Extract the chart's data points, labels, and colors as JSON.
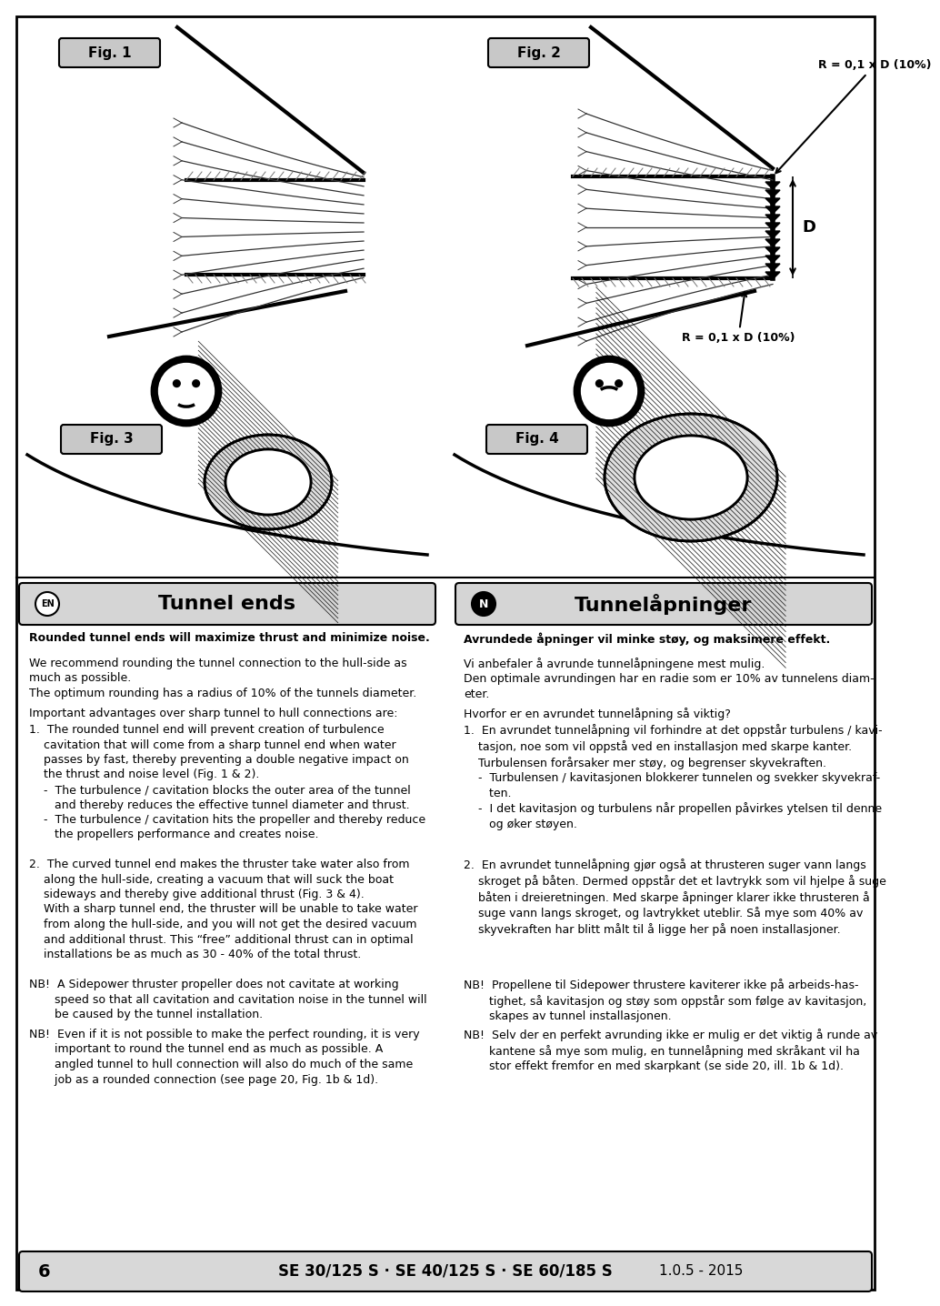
{
  "title_en": "Tunnel ends",
  "title_no": "Tunnelåpninger",
  "footer_text_bold": "SE 30/125 S · SE 40/125 S · SE 60/185 S",
  "footer_version": "1.0.5 - 2015",
  "footer_page": "6",
  "bold_en_1": "Rounded tunnel ends will maximize thrust and minimize noise.",
  "bold_no_1": "Avrundede åpninger vil minke støy, og maksimere effekt.",
  "text_en_rec": "We recommend rounding the tunnel connection to the hull-side as\nmuch as possible.\nThe optimum rounding has a radius of 10% of the tunnels diameter.",
  "text_no_rec": "Vi anbefaler å avrunde tunnelåpningene mest mulig.\nDen optimale avrundingen har en radie som er 10% av tunnelens diam-\neter.",
  "text_en_imp": "Important advantages over sharp tunnel to hull connections are:",
  "text_no_imp": "Hvorfor er en avrundet tunnelåpning så viktig?",
  "text_en_p1": "1.  The rounded tunnel end will prevent creation of turbulence\n    cavitation that will come from a sharp tunnel end when water\n    passes by fast, thereby preventing a double negative impact on\n    the thrust and noise level (Fig. 1 & 2).\n    -  The turbulence / cavitation blocks the outer area of the tunnel\n       and thereby reduces the effective tunnel diameter and thrust.\n    -  The turbulence / cavitation hits the propeller and thereby reduce\n       the propellers performance and creates noise.",
  "text_no_p1": "1.  En avrundet tunnelåpning vil forhindre at det oppstår turbulens / kavi-\n    tasjon, noe som vil oppstå ved en installasjon med skarpe kanter.\n    Turbulensen forårsaker mer støy, og begrenser skyvekraften.\n    -  Turbulensen / kavitasjonen blokkerer tunnelen og svekker skyvekraf-\n       ten.\n    -  I det kavitasjon og turbulens når propellen påvirkes ytelsen til denne\n       og øker støyen.",
  "text_en_p2": "2.  The curved tunnel end makes the thruster take water also from\n    along the hull-side, creating a vacuum that will suck the boat\n    sideways and thereby give additional thrust (Fig. 3 & 4).\n    With a sharp tunnel end, the thruster will be unable to take water\n    from along the hull-side, and you will not get the desired vacuum\n    and additional thrust. This “free” additional thrust can in optimal\n    installations be as much as 30 - 40% of the total thrust.",
  "text_no_p2": "2.  En avrundet tunnelåpning gjør også at thrusteren suger vann langs\n    skroget på båten. Dermed oppstår det et lavtrykk som vil hjelpe å suge\n    båten i dreieretningen. Med skarpe åpninger klarer ikke thrusteren å\n    suge vann langs skroget, og lavtrykket uteblir. Så mye som 40% av\n    skyvekraften har blitt målt til å ligge her på noen installasjoner.",
  "text_en_nb1": "NB!  A Sidepower thruster propeller does not cavitate at working\n       speed so that all cavitation and cavitation noise in the tunnel will\n       be caused by the tunnel installation.",
  "text_en_nb2": "NB!  Even if it is not possible to make the perfect rounding, it is very\n       important to round the tunnel end as much as possible. A\n       angled tunnel to hull connection will also do much of the same\n       job as a rounded connection (see page 20, Fig. 1b & 1d).",
  "text_no_nb1": "NB!  Propellene til Sidepower thrustere kaviterer ikke på arbeids-has-\n       tighet, så kavitasjon og støy som oppstår som følge av kavitasjon,\n       skapes av tunnel installasjonen.",
  "text_no_nb2": "NB!  Selv der en perfekt avrunding ikke er mulig er det viktig å runde av\n       kantene så mye som mulig, en tunnelåpning med skråkant vil ha\n       stor effekt fremfor en med skarpkant (se side 20, ill. 1b & 1d).",
  "label_r_top": "R = 0,1 x D (10%)",
  "label_r_bot": "R = 0,1 x D (10%)",
  "label_d": "D",
  "fig1": "Fig. 1",
  "fig2": "Fig. 2",
  "fig3": "Fig. 3",
  "fig4": "Fig. 4"
}
